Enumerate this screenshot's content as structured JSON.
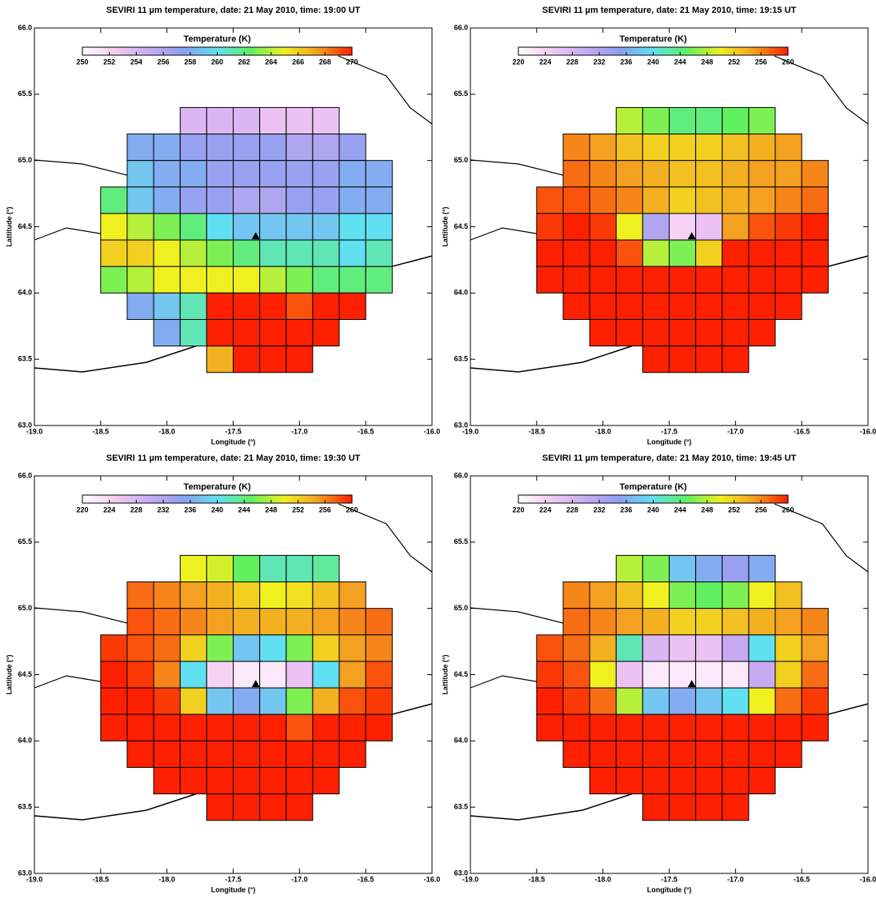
{
  "chart_data": [
    {
      "type": "heatmap",
      "title": "SEVIRI 11 µm temperature,  date: 21 May 2010,  time: 19:00 UT",
      "xlabel": "Longitude (°)",
      "ylabel": "Lattitude (°)",
      "xlim": [
        -19,
        -16
      ],
      "ylim": [
        63,
        66
      ],
      "xticks": [
        {
          "value": -19,
          "label": "-19.0"
        },
        {
          "value": -18.5,
          "label": "-18.5"
        },
        {
          "value": -18,
          "label": "-18.0"
        },
        {
          "value": -17.5,
          "label": "-17.5"
        },
        {
          "value": -17,
          "label": "-17.0"
        },
        {
          "value": -16.5,
          "label": "-16.5"
        },
        {
          "value": -16,
          "label": "-16.0"
        }
      ],
      "yticks": [
        {
          "value": 63,
          "label": "63.0"
        },
        {
          "value": 63.5,
          "label": "63.5"
        },
        {
          "value": 64,
          "label": "64.0"
        },
        {
          "value": 64.5,
          "label": "64.5"
        },
        {
          "value": 65,
          "label": "65.0"
        },
        {
          "value": 65.5,
          "label": "65.5"
        },
        {
          "value": 66,
          "label": "66.0"
        }
      ],
      "colorbar_title": "Temperature (K)",
      "clim": [
        250,
        270
      ],
      "cticks": [
        250,
        252,
        254,
        256,
        258,
        260,
        262,
        264,
        266,
        268,
        270
      ],
      "colormap": [
        "#ffffff",
        "#f4c8f4",
        "#c8aaf0",
        "#8ca0f0",
        "#60e0f0",
        "#60f060",
        "#f0f020",
        "#f4a020",
        "#ff2000"
      ],
      "x": [
        -18.4,
        -18.2,
        -18.0,
        -17.8,
        -17.6,
        -17.4,
        -17.2,
        -17.0,
        -16.8,
        -16.6,
        -16.4
      ],
      "y": [
        65.3,
        65.1,
        64.9,
        64.7,
        64.5,
        64.3,
        64.1,
        63.9,
        63.7,
        63.5
      ],
      "z": [
        [
          null,
          null,
          null,
          254,
          254,
          254,
          253,
          253,
          253,
          null,
          null
        ],
        [
          null,
          258,
          258,
          257,
          257,
          257,
          257,
          256,
          256,
          257,
          null
        ],
        [
          null,
          259,
          258,
          258,
          257,
          257,
          257,
          257,
          257,
          258,
          258
        ],
        [
          262,
          259,
          258,
          257,
          257,
          256,
          256,
          257,
          257,
          258,
          258
        ],
        [
          265,
          264,
          263,
          262,
          260,
          259,
          259,
          259,
          259,
          260,
          260
        ],
        [
          266,
          266,
          265,
          264,
          263,
          262,
          261,
          261,
          261,
          260,
          261
        ],
        [
          263,
          264,
          265,
          265,
          265,
          265,
          264,
          263,
          262,
          262,
          262
        ],
        [
          null,
          258,
          259,
          261,
          270,
          270,
          270,
          269,
          270,
          270,
          null
        ],
        [
          null,
          null,
          258,
          261,
          270,
          270,
          270,
          270,
          270,
          null,
          null
        ],
        [
          null,
          null,
          null,
          null,
          267,
          270,
          270,
          270,
          null,
          null,
          null
        ]
      ],
      "points": {
        "x": [
          -17.33
        ],
        "y": [
          64.43
        ]
      }
    },
    {
      "type": "heatmap",
      "title": "SEVIRI 11 µm temperature,  date: 21 May 2010,  time: 19:15 UT",
      "xlabel": "Longitude (°)",
      "ylabel": "Lattitude (°)",
      "xlim": [
        -19,
        -16
      ],
      "ylim": [
        63,
        66
      ],
      "xticks": [
        {
          "value": -19,
          "label": "-19.0"
        },
        {
          "value": -18.5,
          "label": "-18.5"
        },
        {
          "value": -18,
          "label": "-18.0"
        },
        {
          "value": -17.5,
          "label": "-17.5"
        },
        {
          "value": -17,
          "label": "-17.0"
        },
        {
          "value": -16.5,
          "label": "-16.5"
        },
        {
          "value": -16,
          "label": "-16.0"
        }
      ],
      "yticks": [
        {
          "value": 63,
          "label": "63.0"
        },
        {
          "value": 63.5,
          "label": "63.5"
        },
        {
          "value": 64,
          "label": "64.0"
        },
        {
          "value": 64.5,
          "label": "64.5"
        },
        {
          "value": 65,
          "label": "65.0"
        },
        {
          "value": 65.5,
          "label": "65.5"
        },
        {
          "value": 66,
          "label": "66.0"
        }
      ],
      "colorbar_title": "Temperature (K)",
      "clim": [
        220,
        260
      ],
      "cticks": [
        220,
        224,
        228,
        232,
        236,
        240,
        244,
        248,
        252,
        256,
        260
      ],
      "colormap": [
        "#ffffff",
        "#f4c8f4",
        "#c8aaf0",
        "#8ca0f0",
        "#60e0f0",
        "#60f060",
        "#f0f020",
        "#f4a020",
        "#ff2000"
      ],
      "x": [
        -18.4,
        -18.2,
        -18.0,
        -17.8,
        -17.6,
        -17.4,
        -17.2,
        -17.0,
        -16.8,
        -16.6,
        -16.4
      ],
      "y": [
        65.3,
        65.1,
        64.9,
        64.7,
        64.5,
        64.3,
        64.1,
        63.9,
        63.7,
        63.5
      ],
      "z": [
        [
          null,
          null,
          null,
          248,
          246,
          244,
          244,
          245,
          246,
          null,
          null
        ],
        [
          null,
          256,
          255,
          253,
          252,
          252,
          252,
          253,
          254,
          255,
          null
        ],
        [
          null,
          257,
          256,
          255,
          254,
          253,
          253,
          254,
          255,
          255,
          256
        ],
        [
          258,
          258,
          257,
          256,
          254,
          252,
          253,
          254,
          255,
          256,
          257
        ],
        [
          259,
          260,
          259,
          250,
          232,
          224,
          226,
          255,
          258,
          259,
          260
        ],
        [
          260,
          260,
          260,
          258,
          248,
          246,
          252,
          260,
          260,
          260,
          260
        ],
        [
          260,
          260,
          260,
          260,
          260,
          260,
          260,
          260,
          260,
          260,
          260
        ],
        [
          null,
          260,
          260,
          260,
          260,
          260,
          260,
          260,
          260,
          260,
          null
        ],
        [
          null,
          null,
          260,
          260,
          260,
          260,
          260,
          260,
          260,
          null,
          null
        ],
        [
          null,
          null,
          null,
          null,
          260,
          260,
          260,
          260,
          null,
          null,
          null
        ]
      ],
      "points": {
        "x": [
          -17.33
        ],
        "y": [
          64.43
        ]
      }
    },
    {
      "type": "heatmap",
      "title": "SEVIRI 11 µm temperature,  date: 21 May 2010,  time: 19:30 UT",
      "xlabel": "Longitude (°)",
      "ylabel": "Lattitude (°)",
      "xlim": [
        -19,
        -16
      ],
      "ylim": [
        63,
        66
      ],
      "xticks": [
        {
          "value": -19,
          "label": "-19.0"
        },
        {
          "value": -18.5,
          "label": "-18.5"
        },
        {
          "value": -18,
          "label": "-18.0"
        },
        {
          "value": -17.5,
          "label": "-17.5"
        },
        {
          "value": -17,
          "label": "-17.0"
        },
        {
          "value": -16.5,
          "label": "-16.5"
        },
        {
          "value": -16,
          "label": "-16.0"
        }
      ],
      "yticks": [
        {
          "value": 63,
          "label": "63.0"
        },
        {
          "value": 63.5,
          "label": "63.5"
        },
        {
          "value": 64,
          "label": "64.0"
        },
        {
          "value": 64.5,
          "label": "64.5"
        },
        {
          "value": 65,
          "label": "65.0"
        },
        {
          "value": 65.5,
          "label": "65.5"
        },
        {
          "value": 66,
          "label": "66.0"
        }
      ],
      "colorbar_title": "Temperature (K)",
      "clim": [
        220,
        260
      ],
      "cticks": [
        220,
        224,
        228,
        232,
        236,
        240,
        244,
        248,
        252,
        256,
        260
      ],
      "colormap": [
        "#ffffff",
        "#f4c8f4",
        "#c8aaf0",
        "#8ca0f0",
        "#60e0f0",
        "#60f060",
        "#f0f020",
        "#f4a020",
        "#ff2000"
      ],
      "x": [
        -18.4,
        -18.2,
        -18.0,
        -17.8,
        -17.6,
        -17.4,
        -17.2,
        -17.0,
        -16.8,
        -16.6,
        -16.4
      ],
      "y": [
        65.3,
        65.1,
        64.9,
        64.7,
        64.5,
        64.3,
        64.1,
        63.9,
        63.7,
        63.5
      ],
      "z": [
        [
          null,
          null,
          null,
          250,
          249,
          245,
          242,
          242,
          243,
          null,
          null
        ],
        [
          null,
          257,
          256,
          255,
          254,
          252,
          250,
          251,
          253,
          255,
          null
        ],
        [
          null,
          258,
          257,
          256,
          255,
          254,
          254,
          254,
          255,
          256,
          257
        ],
        [
          259,
          258,
          257,
          252,
          246,
          238,
          240,
          246,
          252,
          255,
          256
        ],
        [
          260,
          259,
          256,
          240,
          224,
          222,
          222,
          226,
          240,
          255,
          258
        ],
        [
          260,
          260,
          259,
          252,
          238,
          236,
          238,
          246,
          254,
          258,
          259
        ],
        [
          260,
          260,
          260,
          260,
          260,
          260,
          260,
          258,
          260,
          260,
          260
        ],
        [
          null,
          260,
          260,
          260,
          260,
          260,
          260,
          260,
          260,
          260,
          null
        ],
        [
          null,
          null,
          260,
          260,
          260,
          260,
          260,
          260,
          260,
          null,
          null
        ],
        [
          null,
          null,
          null,
          null,
          260,
          260,
          260,
          260,
          null,
          null,
          null
        ]
      ],
      "points": {
        "x": [
          -17.33
        ],
        "y": [
          64.43
        ]
      }
    },
    {
      "type": "heatmap",
      "title": "SEVIRI 11 µm temperature,  date: 21 May 2010,  time: 19:45 UT",
      "xlabel": "Longitude (°)",
      "ylabel": "Lattitude (°)",
      "xlim": [
        -19,
        -16
      ],
      "ylim": [
        63,
        66
      ],
      "xticks": [
        {
          "value": -19,
          "label": "-19.0"
        },
        {
          "value": -18.5,
          "label": "-18.5"
        },
        {
          "value": -18,
          "label": "-18.0"
        },
        {
          "value": -17.5,
          "label": "-17.5"
        },
        {
          "value": -17,
          "label": "-17.0"
        },
        {
          "value": -16.5,
          "label": "-16.5"
        },
        {
          "value": -16,
          "label": "-16.0"
        }
      ],
      "yticks": [
        {
          "value": 63,
          "label": "63.0"
        },
        {
          "value": 63.5,
          "label": "63.5"
        },
        {
          "value": 64,
          "label": "64.0"
        },
        {
          "value": 64.5,
          "label": "64.5"
        },
        {
          "value": 65,
          "label": "65.0"
        },
        {
          "value": 65.5,
          "label": "65.5"
        },
        {
          "value": 66,
          "label": "66.0"
        }
      ],
      "colorbar_title": "Temperature (K)",
      "clim": [
        220,
        260
      ],
      "cticks": [
        220,
        224,
        228,
        232,
        236,
        240,
        244,
        248,
        252,
        256,
        260
      ],
      "colormap": [
        "#ffffff",
        "#f4c8f4",
        "#c8aaf0",
        "#8ca0f0",
        "#60e0f0",
        "#60f060",
        "#f0f020",
        "#f4a020",
        "#ff2000"
      ],
      "x": [
        -18.4,
        -18.2,
        -18.0,
        -17.8,
        -17.6,
        -17.4,
        -17.2,
        -17.0,
        -16.8,
        -16.6,
        -16.4
      ],
      "y": [
        65.3,
        65.1,
        64.9,
        64.7,
        64.5,
        64.3,
        64.1,
        63.9,
        63.7,
        63.5
      ],
      "z": [
        [
          null,
          null,
          null,
          248,
          246,
          238,
          236,
          234,
          236,
          null,
          null
        ],
        [
          null,
          256,
          255,
          253,
          250,
          246,
          245,
          246,
          250,
          253,
          null
        ],
        [
          null,
          257,
          256,
          255,
          254,
          252,
          252,
          253,
          254,
          255,
          256
        ],
        [
          258,
          257,
          254,
          242,
          228,
          226,
          226,
          230,
          240,
          252,
          255
        ],
        [
          259,
          258,
          250,
          226,
          222,
          222,
          222,
          222,
          230,
          252,
          257
        ],
        [
          260,
          259,
          257,
          248,
          238,
          236,
          238,
          240,
          250,
          257,
          259
        ],
        [
          260,
          260,
          260,
          260,
          260,
          260,
          260,
          260,
          260,
          260,
          260
        ],
        [
          null,
          260,
          260,
          260,
          260,
          260,
          260,
          260,
          260,
          260,
          null
        ],
        [
          null,
          null,
          260,
          260,
          260,
          260,
          260,
          260,
          260,
          null,
          null
        ],
        [
          null,
          null,
          null,
          null,
          260,
          260,
          260,
          260,
          null,
          null,
          null
        ]
      ],
      "points": {
        "x": [
          -17.33
        ],
        "y": [
          64.43
        ]
      }
    }
  ]
}
